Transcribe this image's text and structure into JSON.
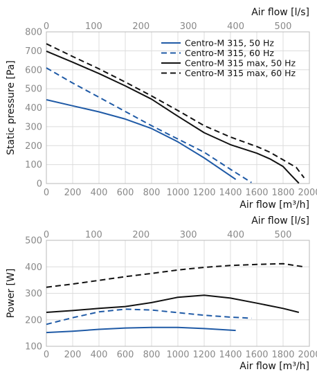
{
  "chart_data": [
    {
      "type": "line",
      "xlabel": "Air flow [m³/h]",
      "x2label": "Air flow [l/s]",
      "ylabel": "Static pressure [Pa]",
      "xlim": [
        0,
        2000
      ],
      "x2lim": [
        0,
        555.6
      ],
      "ylim": [
        0,
        800
      ],
      "xticks": [
        "0",
        "200",
        "400",
        "600",
        "800",
        "1000",
        "1200",
        "1400",
        "1600",
        "1800",
        "2000"
      ],
      "x2ticks": [
        "0",
        "100",
        "200",
        "300",
        "400",
        "500"
      ],
      "yticks": [
        "0",
        "100",
        "200",
        "300",
        "400",
        "500",
        "600",
        "700",
        "800"
      ],
      "grid": true,
      "legend_position": "top-right",
      "series": [
        {
          "name": "Centro-M 315, 50 Hz",
          "color": "#1f5aa6",
          "dash": "solid",
          "x": [
            0,
            200,
            400,
            600,
            800,
            1000,
            1200,
            1440
          ],
          "y": [
            442,
            410,
            378,
            340,
            290,
            220,
            135,
            22
          ]
        },
        {
          "name": "Centro-M 315, 60 Hz",
          "color": "#1f5aa6",
          "dash": "dashed",
          "x": [
            0,
            200,
            400,
            600,
            800,
            1000,
            1200,
            1400,
            1560
          ],
          "y": [
            610,
            530,
            455,
            380,
            305,
            235,
            165,
            75,
            5
          ]
        },
        {
          "name": "Centro-M 315 max, 50 Hz",
          "color": "#111111",
          "dash": "solid",
          "x": [
            0,
            200,
            400,
            600,
            800,
            1000,
            1200,
            1400,
            1600,
            1700,
            1800,
            1860,
            1920
          ],
          "y": [
            698,
            640,
            580,
            515,
            445,
            355,
            268,
            205,
            160,
            130,
            90,
            45,
            2
          ]
        },
        {
          "name": "Centro-M 315 max, 60 Hz",
          "color": "#111111",
          "dash": "dashed",
          "x": [
            0,
            200,
            400,
            600,
            800,
            1000,
            1200,
            1400,
            1600,
            1700,
            1800,
            1900,
            1960
          ],
          "y": [
            737,
            670,
            605,
            535,
            462,
            385,
            305,
            245,
            195,
            165,
            125,
            85,
            30
          ]
        }
      ]
    },
    {
      "type": "line",
      "xlabel": "Air flow [m³/h]",
      "x2label": "Air flow [l/s]",
      "ylabel": "Power [W]",
      "xlim": [
        0,
        2000
      ],
      "x2lim": [
        0,
        555.6
      ],
      "ylim": [
        100,
        500
      ],
      "xticks": [
        "0",
        "200",
        "400",
        "600",
        "800",
        "1000",
        "1200",
        "1400",
        "1600",
        "1800",
        "2000"
      ],
      "x2ticks": [
        "0",
        "100",
        "200",
        "300",
        "400",
        "500"
      ],
      "yticks": [
        "100",
        "200",
        "300",
        "400",
        "500"
      ],
      "grid": true,
      "series": [
        {
          "color": "#1f5aa6",
          "dash": "solid",
          "x": [
            0,
            200,
            400,
            600,
            800,
            1000,
            1200,
            1440
          ],
          "y": [
            152,
            157,
            164,
            169,
            171,
            171,
            167,
            160
          ]
        },
        {
          "color": "#1f5aa6",
          "dash": "dashed",
          "x": [
            0,
            200,
            400,
            600,
            800,
            1000,
            1200,
            1400,
            1560
          ],
          "y": [
            183,
            208,
            230,
            240,
            237,
            227,
            217,
            210,
            206
          ]
        },
        {
          "color": "#111111",
          "dash": "solid",
          "x": [
            0,
            200,
            400,
            600,
            800,
            1000,
            1200,
            1400,
            1600,
            1800,
            1920
          ],
          "y": [
            228,
            235,
            243,
            250,
            265,
            285,
            293,
            282,
            263,
            243,
            228
          ]
        },
        {
          "color": "#111111",
          "dash": "dashed",
          "x": [
            0,
            200,
            400,
            600,
            800,
            1000,
            1200,
            1400,
            1600,
            1800,
            1960
          ],
          "y": [
            323,
            335,
            349,
            363,
            375,
            388,
            398,
            405,
            409,
            412,
            400
          ]
        }
      ]
    }
  ]
}
